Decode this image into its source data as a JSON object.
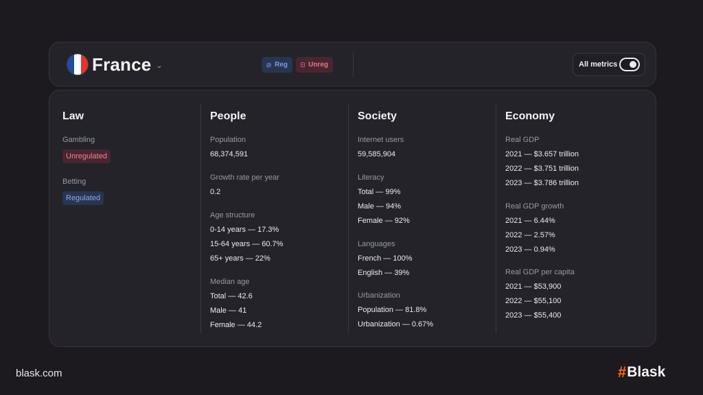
{
  "header": {
    "country": "France",
    "flag_colors": [
      "#1f4ea1",
      "#ffffff",
      "#e3342f"
    ],
    "chips": {
      "reg": "Reg",
      "unreg": "Unreg"
    },
    "metrics_label": "All metrics",
    "metrics_toggle_on": true
  },
  "law": {
    "title": "Law",
    "gambling_label": "Gambling",
    "gambling_value": "Unregulated",
    "betting_label": "Betting",
    "betting_value": "Regulated"
  },
  "people": {
    "title": "People",
    "population_label": "Population",
    "population_value": "68,374,591",
    "growth_label": "Growth rate per year",
    "growth_value": "0.2",
    "age_label": "Age structure",
    "age_values": [
      "0-14 years — 17.3%",
      "15-64 years — 60.7%",
      "65+ years — 22%"
    ],
    "median_label": "Median age",
    "median_values": [
      "Total — 42.6",
      "Male — 41",
      "Female — 44.2"
    ]
  },
  "society": {
    "title": "Society",
    "internet_label": "Internet users",
    "internet_value": "59,585,904",
    "literacy_label": "Literacy",
    "literacy_values": [
      "Total — 99%",
      "Male — 94%",
      "Female — 92%"
    ],
    "languages_label": "Languages",
    "languages_values": [
      "French — 100%",
      "English — 39%"
    ],
    "urban_label": "Urbanization",
    "urban_values": [
      "Population — 81.8%",
      "Urbanization — 0.67%"
    ]
  },
  "economy": {
    "title": "Economy",
    "gdp_label": "Real GDP",
    "gdp_values": [
      "2021 — $3.657 trillion",
      "2022 — $3.751 trillion",
      "2023 — $3.786 trillion"
    ],
    "growth_label": "Real GDP growth",
    "growth_values": [
      "2021 — 6.44%",
      "2022 — 2.57%",
      "2023 — 0.94%"
    ],
    "capita_label": "Real GDP per capita",
    "capita_values": [
      "2021 — $53,900",
      "2022 — $55,100",
      "2023 — $55,400"
    ]
  },
  "footer": {
    "site": "blask.com",
    "brand_hash": "#",
    "brand_name": "Blask",
    "brand_color": "#ff6a1a"
  }
}
